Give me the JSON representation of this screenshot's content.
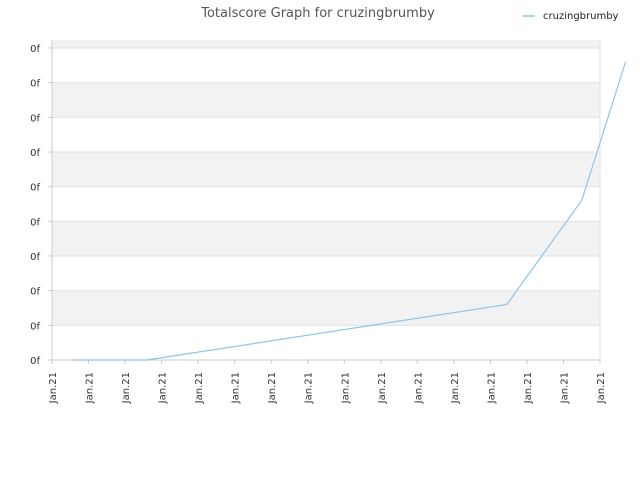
{
  "chart_data": {
    "type": "line",
    "title": "Totalscore Graph for cruzingbrumby",
    "legend": {
      "position": "top-right"
    },
    "grid": true,
    "x_tick_labels": [
      "Jan.21",
      "Jan.21",
      "Jan.21",
      "Jan.21",
      "Jan.21",
      "Jan.21",
      "Jan.21",
      "Jan.21",
      "Jan.21",
      "Jan.21",
      "Jan.21",
      "Jan.21",
      "Jan.21",
      "Jan.21",
      "Jan.21",
      "Jan.21"
    ],
    "y_tick_labels": [
      "0f",
      "0f",
      "0f",
      "0f",
      "0f",
      "0f",
      "0f",
      "0f",
      "0f",
      "0f"
    ],
    "ylim": [
      0,
      9
    ],
    "series": [
      {
        "name": "cruzingbrumby",
        "color": "#90c4ec",
        "x": [
          0.55,
          2.6,
          12.45,
          14.5,
          15.7
        ],
        "y": [
          0,
          0,
          1.6,
          4.6,
          8.6
        ]
      }
    ]
  }
}
